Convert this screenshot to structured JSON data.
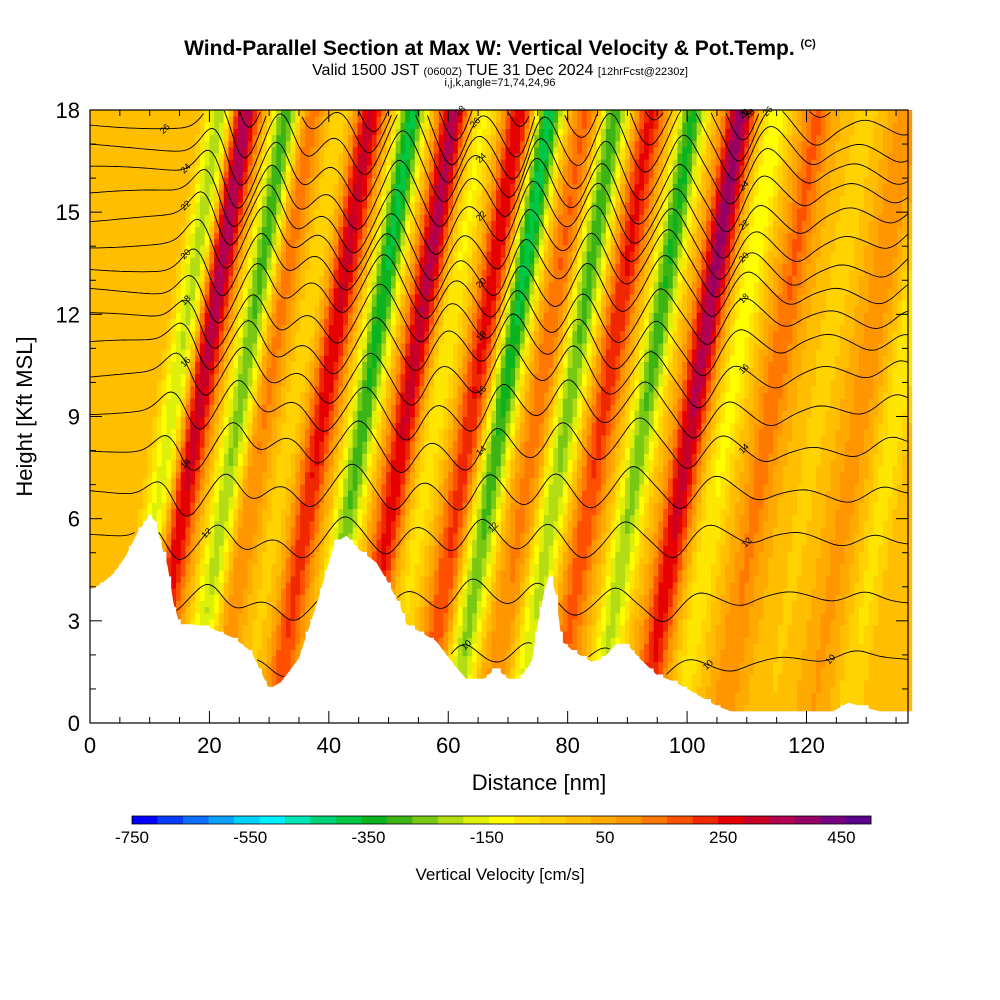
{
  "title": {
    "main": "Wind-Parallel Section at Max W: Vertical Velocity & Pot.Temp.",
    "mark": "(C)",
    "valid_prefix": "Valid 1500 JST",
    "valid_utc": "(0600Z)",
    "valid_date": "TUE 31 Dec 2024",
    "forecast": "[12hrFcst@2230z]",
    "indices": "i,j,k,angle=71,74,24,96"
  },
  "chart_data": {
    "type": "heatmap",
    "xlabel": "Distance [nm]",
    "ylabel": "Height [Kft MSL]",
    "xlim": [
      0,
      137
    ],
    "ylim": [
      0,
      18
    ],
    "x_ticks": [
      "0",
      "20",
      "40",
      "60",
      "80",
      "100",
      "120"
    ],
    "y_ticks": [
      "0",
      "3",
      "6",
      "9",
      "12",
      "15",
      "18"
    ],
    "colorbar": {
      "label": "Vertical Velocity [cm/s]",
      "tick_labels": [
        "-750",
        "-550",
        "-350",
        "-150",
        "50",
        "250",
        "450"
      ],
      "tick_values": [
        -750,
        -550,
        -350,
        -150,
        50,
        250,
        450
      ],
      "range": [
        -750,
        500
      ],
      "colors": [
        "#0000ff",
        "#0a3cff",
        "#0a6eff",
        "#0aa0ff",
        "#00d2ff",
        "#00f0ff",
        "#00e6b4",
        "#00d278",
        "#00c846",
        "#0ab41e",
        "#3cb414",
        "#78c814",
        "#b4dc14",
        "#dcf00a",
        "#ffff00",
        "#ffe600",
        "#ffd200",
        "#ffbe00",
        "#ffaa00",
        "#ff9600",
        "#ff7800",
        "#ff5000",
        "#f02800",
        "#e60000",
        "#c80028",
        "#b40050",
        "#960064",
        "#780082",
        "#5a008c"
      ]
    },
    "terrain": {
      "x": [
        0,
        2,
        4,
        6,
        8,
        10,
        11,
        12,
        13,
        14,
        15,
        17,
        20,
        24,
        27,
        30,
        32,
        35,
        38,
        41,
        43,
        45,
        48,
        50,
        52,
        53,
        55,
        58,
        61,
        63,
        66,
        68,
        70,
        72,
        74,
        75,
        76,
        77,
        78,
        79,
        81,
        82,
        84,
        86,
        88,
        90,
        92,
        95,
        98,
        100,
        103,
        105,
        108,
        112,
        118,
        124,
        127,
        133,
        137
      ],
      "y": [
        3.9,
        4.1,
        4.4,
        4.9,
        5.6,
        6.1,
        5.9,
        5.2,
        4.6,
        3.5,
        2.9,
        2.9,
        2.8,
        2.5,
        2.1,
        1.0,
        1.2,
        1.9,
        3.5,
        5.3,
        5.5,
        5.1,
        4.7,
        4.1,
        3.4,
        2.9,
        2.7,
        2.4,
        1.7,
        1.3,
        1.3,
        1.6,
        1.3,
        1.3,
        1.8,
        2.9,
        3.8,
        4.4,
        3.8,
        2.4,
        2.1,
        2.0,
        1.8,
        1.9,
        2.3,
        2.3,
        1.9,
        1.4,
        1.2,
        1.0,
        0.7,
        0.5,
        0.3,
        0.3,
        0.3,
        0.3,
        0.6,
        0.3,
        0.3
      ]
    },
    "w_features": [
      {
        "x": 13,
        "w": -230
      },
      {
        "x": 17,
        "w": 330
      },
      {
        "x": 24,
        "w": -300
      },
      {
        "x": 28,
        "w": 120
      },
      {
        "x": 33,
        "w": -70
      },
      {
        "x": 38,
        "w": 260
      },
      {
        "x": 45,
        "w": -360
      },
      {
        "x": 52,
        "w": 300
      },
      {
        "x": 57,
        "w": -120
      },
      {
        "x": 63,
        "w": 240
      },
      {
        "x": 68,
        "w": -380
      },
      {
        "x": 74,
        "w": 130
      },
      {
        "x": 79,
        "w": -300
      },
      {
        "x": 85,
        "w": 210
      },
      {
        "x": 92,
        "w": -320
      },
      {
        "x": 100,
        "w": 340
      },
      {
        "x": 106,
        "w": -150
      },
      {
        "x": 113,
        "w": 130
      },
      {
        "x": 121,
        "w": -60
      },
      {
        "x": 128,
        "w": 80
      },
      {
        "x": 134,
        "w": -120
      }
    ],
    "theta_contours": [
      {
        "base": 1.8,
        "label": "10"
      },
      {
        "base": 3.6,
        "label": ""
      },
      {
        "base": 5.4,
        "label": "12"
      },
      {
        "base": 6.8,
        "label": ""
      },
      {
        "base": 8.1,
        "label": "14"
      },
      {
        "base": 9.2,
        "label": ""
      },
      {
        "base": 10.2,
        "label": "16"
      },
      {
        "base": 11.1,
        "label": ""
      },
      {
        "base": 11.9,
        "label": "18"
      },
      {
        "base": 12.7,
        "label": ""
      },
      {
        "base": 13.4,
        "label": "20"
      },
      {
        "base": 14.1,
        "label": ""
      },
      {
        "base": 14.8,
        "label": "22"
      },
      {
        "base": 15.5,
        "label": ""
      },
      {
        "base": 16.2,
        "label": "24"
      },
      {
        "base": 16.9,
        "label": ""
      },
      {
        "base": 17.6,
        "label": "26"
      },
      {
        "base": 18.4,
        "label": ""
      },
      {
        "base": 19.2,
        "label": "28"
      }
    ]
  }
}
